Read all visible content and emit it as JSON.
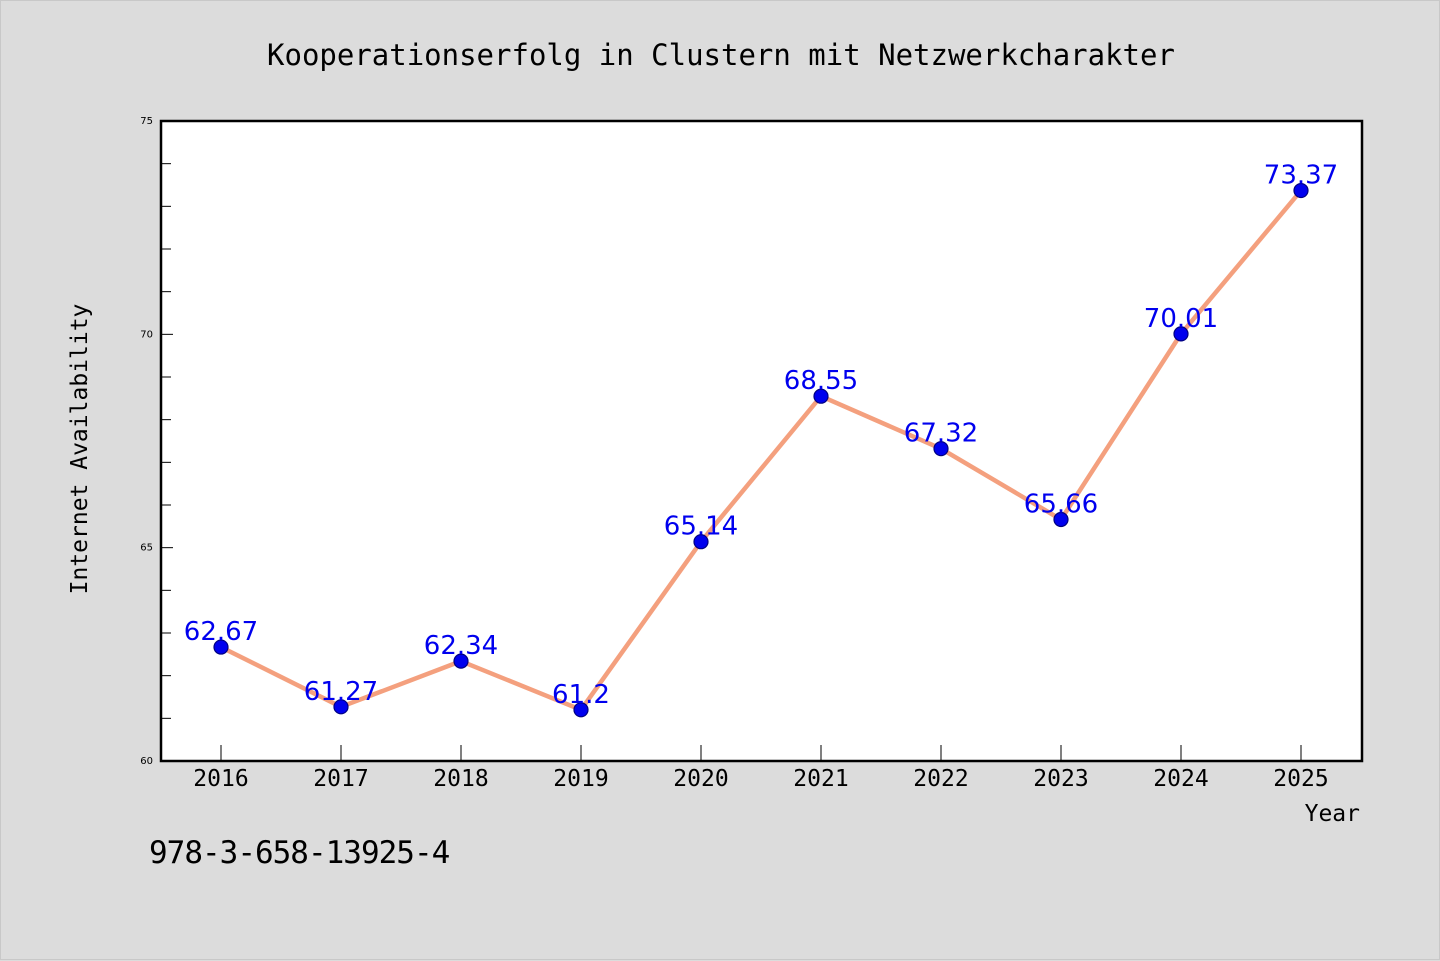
{
  "chart_data": {
    "type": "line",
    "title": "Kooperationserfolg in Clustern mit Netzwerkcharakter",
    "xlabel": "Year",
    "ylabel": "Internet Availability",
    "x": [
      "2016",
      "2017",
      "2018",
      "2019",
      "2020",
      "2021",
      "2022",
      "2023",
      "2024",
      "2025"
    ],
    "series": [
      {
        "values": [
          62.67,
          61.27,
          62.34,
          61.2,
          65.14,
          68.55,
          67.32,
          65.66,
          70.01,
          73.37
        ]
      }
    ],
    "data_labels": [
      "62.67",
      "61.27",
      "62.34",
      "61.2",
      "65.14",
      "68.55",
      "67.32",
      "65.66",
      "70.01",
      "73.37"
    ],
    "ylim": [
      60,
      75
    ],
    "y_major_ticks": [
      60,
      65,
      70,
      75
    ],
    "y_major_tick_labels": [
      "60",
      "65",
      "70",
      "75"
    ],
    "y_minor_step": 1,
    "grid": false,
    "legend": "none",
    "colors": {
      "line": "#f4a07e",
      "marker": "#0000ee",
      "marker_edge": "#000080",
      "data_label": "#0000ee",
      "background": "#dcdcdc",
      "plot_background": "#ffffff"
    }
  },
  "footer": {
    "isbn": "978-3-658-13925-4"
  }
}
